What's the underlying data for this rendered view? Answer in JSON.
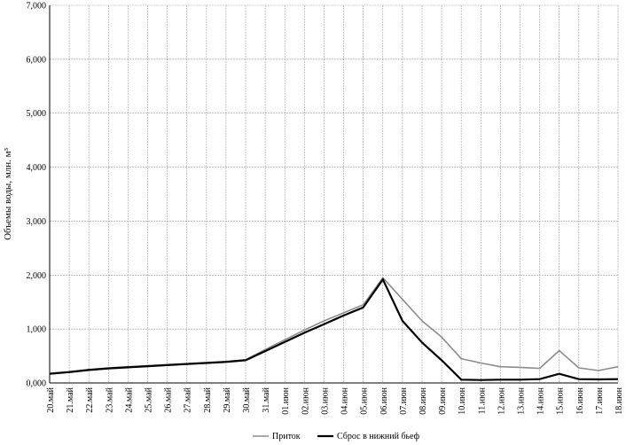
{
  "chart_data": {
    "type": "line",
    "ylabel": "Объемы воды, млн. м³",
    "ylim": [
      0,
      7000
    ],
    "yticks": [
      0,
      1000,
      2000,
      3000,
      4000,
      5000,
      6000,
      7000
    ],
    "ytick_labels": [
      "0,000",
      "1,000",
      "2,000",
      "3,000",
      "4,000",
      "5,000",
      "6,000",
      "7,000"
    ],
    "grid": true,
    "legend_position": "bottom",
    "categories": [
      "20.май",
      "21.май",
      "22.май",
      "23.май",
      "24.май",
      "25.май",
      "26.май",
      "27.май",
      "28.май",
      "29.май",
      "30.май",
      "31.май",
      "01.июн",
      "02.июн",
      "03.июн",
      "04.июн",
      "05.июн",
      "06.июн",
      "07.июн",
      "08.июн",
      "09.июн",
      "10.июн",
      "11.июн",
      "12.июн",
      "13.июн",
      "14.июн",
      "15.июн",
      "16.июн",
      "17.июн",
      "18.июн"
    ],
    "series": [
      {
        "name": "Приток",
        "color": "#8c8c8c",
        "values": [
          180,
          210,
          250,
          280,
          300,
          320,
          340,
          360,
          380,
          400,
          430,
          620,
          800,
          980,
          1150,
          1300,
          1450,
          1950,
          1550,
          1150,
          850,
          450,
          370,
          300,
          290,
          270,
          600,
          280,
          230,
          300
        ]
      },
      {
        "name": "Сброс в нижний бьеф",
        "color": "#000000",
        "values": [
          170,
          200,
          240,
          270,
          290,
          310,
          330,
          350,
          370,
          390,
          420,
          590,
          760,
          930,
          1090,
          1250,
          1400,
          1920,
          1150,
          750,
          420,
          60,
          55,
          60,
          60,
          70,
          170,
          70,
          65,
          70
        ]
      }
    ]
  }
}
